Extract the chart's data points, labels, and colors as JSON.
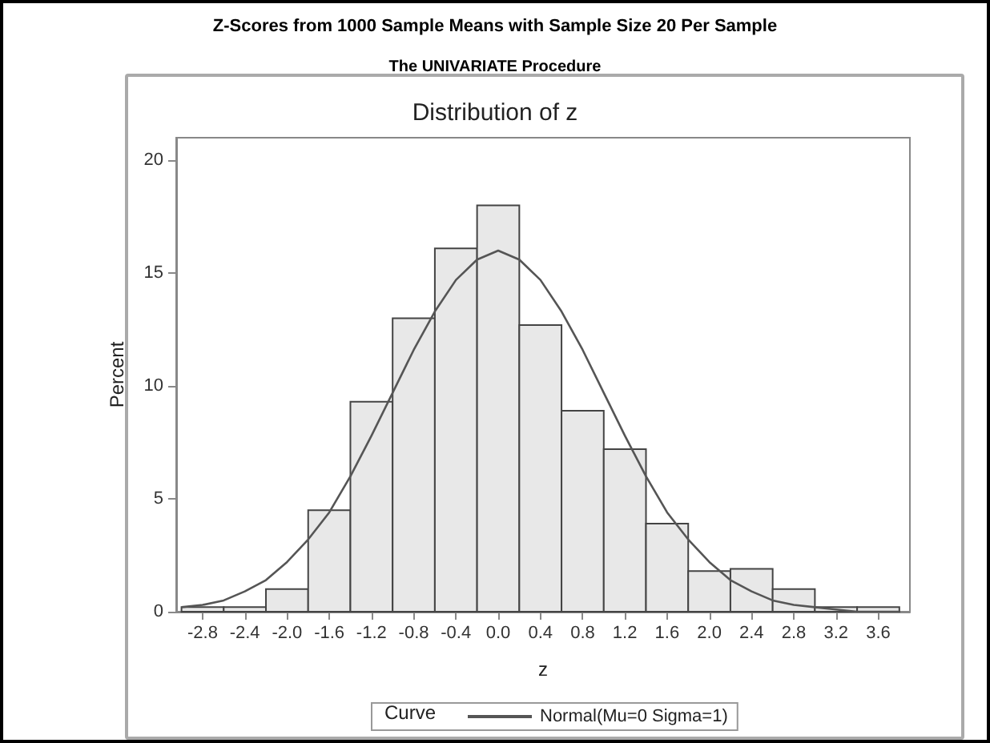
{
  "chart_data": {
    "type": "histogram",
    "title": "Z-Scores from 1000 Sample Means with Sample Size 20 Per Sample",
    "subtitle": "The UNIVARIATE Procedure",
    "annotations": [
      "Distribution of z"
    ],
    "xlabel": "z",
    "ylabel": "Percent",
    "legend_title": "Curve",
    "legend": "bottom",
    "grid": false,
    "bins": [
      -3.0,
      -2.6,
      -2.2,
      -1.8,
      -1.4,
      -1.0,
      -0.6,
      -0.2,
      0.2,
      0.6,
      1.0,
      1.4,
      1.8,
      2.2,
      2.6,
      3.0,
      3.4,
      3.8
    ],
    "values": [
      0.2,
      0.2,
      1.0,
      4.5,
      9.3,
      13.0,
      16.1,
      18.0,
      12.7,
      8.9,
      7.2,
      3.9,
      1.8,
      1.9,
      1.0,
      0.2,
      0.2
    ],
    "color": "#e8e8e8",
    "series": [
      {
        "type": "line",
        "name": "Normal(Mu=0 Sigma=1)",
        "color": "#555555",
        "marker": "none",
        "line_style": "solid",
        "x": [
          -3.0,
          -2.8,
          -2.6,
          -2.4,
          -2.2,
          -2.0,
          -1.8,
          -1.6,
          -1.4,
          -1.2,
          -1.0,
          -0.8,
          -0.6,
          -0.4,
          -0.2,
          0.0,
          0.2,
          0.4,
          0.6,
          0.8,
          1.0,
          1.2,
          1.4,
          1.6,
          1.8,
          2.0,
          2.2,
          2.4,
          2.6,
          2.8,
          3.0,
          3.2,
          3.4,
          3.6,
          3.8
        ],
        "values": [
          0.2,
          0.3,
          0.5,
          0.9,
          1.4,
          2.2,
          3.2,
          4.4,
          6.0,
          7.8,
          9.7,
          11.6,
          13.3,
          14.7,
          15.6,
          16.0,
          15.6,
          14.7,
          13.3,
          11.6,
          9.7,
          7.8,
          6.0,
          4.4,
          3.2,
          2.2,
          1.4,
          0.9,
          0.5,
          0.3,
          0.2,
          0.1,
          0.0,
          0.0,
          0.0
        ]
      }
    ],
    "xlim": [
      -3.05,
      3.9
    ],
    "xticks": [
      {
        "value": -2.8,
        "label": "-2.8"
      },
      {
        "value": -2.4,
        "label": "-2.4"
      },
      {
        "value": -2.0,
        "label": "-2.0"
      },
      {
        "value": -1.6,
        "label": "-1.6"
      },
      {
        "value": -1.2,
        "label": "-1.2"
      },
      {
        "value": -0.8,
        "label": "-0.8"
      },
      {
        "value": -0.4,
        "label": "-0.4"
      },
      {
        "value": 0,
        "label": "0.0"
      },
      {
        "value": 0.4,
        "label": "0.4"
      },
      {
        "value": 0.8,
        "label": "0.8"
      },
      {
        "value": 1.2,
        "label": "1.2"
      },
      {
        "value": 1.6,
        "label": "1.6"
      },
      {
        "value": 2.0,
        "label": "2.0"
      },
      {
        "value": 2.4,
        "label": "2.4"
      },
      {
        "value": 2.8,
        "label": "2.8"
      },
      {
        "value": 3.2,
        "label": "3.2"
      },
      {
        "value": 3.6,
        "label": "3.6"
      }
    ],
    "ylim": [
      0,
      21
    ],
    "yticks": [
      0,
      5,
      10,
      15,
      20
    ]
  }
}
